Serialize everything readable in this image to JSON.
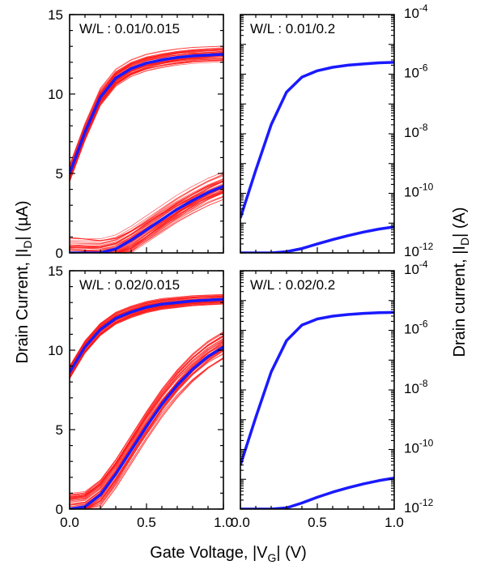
{
  "figure": {
    "left_axis_title_prefix": "Drain Current, |I",
    "left_axis_title_sub": "D",
    "left_axis_title_suffix": "| (µA)",
    "right_axis_title_prefix": "Drain current, |I",
    "right_axis_title_sub": "D",
    "right_axis_title_suffix": "| (A)",
    "x_axis_title_prefix": "Gate Voltage, |V",
    "x_axis_title_sub": "G",
    "x_axis_title_suffix": "| (V)"
  },
  "colors": {
    "variation": "#ff1a1a",
    "mean": "#1a1aff"
  },
  "chart_data": [
    {
      "type": "line",
      "panel": "top-left",
      "label": "W/L : 0.01/0.015",
      "xlim": [
        0,
        1.0
      ],
      "ylim": [
        0,
        15
      ],
      "yscale": "linear",
      "x_ticks": [],
      "y_ticks": [
        "0",
        "5",
        "10",
        "15"
      ],
      "x": [
        0.0,
        0.1,
        0.2,
        0.3,
        0.4,
        0.5,
        0.6,
        0.7,
        0.8,
        0.9,
        1.0
      ],
      "series": [
        {
          "role": "mean",
          "values": [
            5.0,
            7.6,
            9.8,
            11.0,
            11.6,
            11.95,
            12.15,
            12.3,
            12.4,
            12.45,
            12.5
          ]
        },
        {
          "role": "mean",
          "values": [
            0,
            0,
            0,
            0.25,
            0.8,
            1.45,
            2.1,
            2.75,
            3.3,
            3.8,
            4.2
          ]
        }
      ],
      "variation_spread": [
        0.5,
        1.0
      ]
    },
    {
      "type": "line",
      "panel": "top-right",
      "label": "W/L : 0.01/0.2",
      "xlim": [
        0,
        1.0
      ],
      "ylim": [
        1e-12,
        0.0001
      ],
      "yscale": "log",
      "x_ticks": [],
      "y_ticks": [
        "10-12",
        "10-10",
        "10-8",
        "10-6",
        "10-4"
      ],
      "x": [
        0.0,
        0.1,
        0.2,
        0.3,
        0.4,
        0.5,
        0.6,
        0.7,
        0.8,
        0.9,
        1.0
      ],
      "series": [
        {
          "role": "mean",
          "values": [
            1.5e-11,
            6e-10,
            2e-08,
            2.5e-07,
            8e-07,
            1.3e-06,
            1.7e-06,
            2e-06,
            2.2e-06,
            2.4e-06,
            2.5e-06
          ]
        },
        {
          "role": "mean",
          "values": [
            1e-12,
            1e-12,
            1e-12,
            1.1e-12,
            1.4e-12,
            2e-12,
            2.8e-12,
            3.8e-12,
            5e-12,
            6.3e-12,
            7.5e-12
          ]
        }
      ],
      "variation_spread": [
        0.05,
        0.05
      ]
    },
    {
      "type": "line",
      "panel": "bottom-left",
      "label": "W/L : 0.02/0.015",
      "xlim": [
        0,
        1.0
      ],
      "ylim": [
        0,
        15
      ],
      "yscale": "linear",
      "x_ticks": [
        "0.0",
        "0.5",
        "1.0"
      ],
      "y_ticks": [
        "0",
        "5",
        "10",
        "15"
      ],
      "x": [
        0.0,
        0.1,
        0.2,
        0.3,
        0.4,
        0.5,
        0.6,
        0.7,
        0.8,
        0.9,
        1.0
      ],
      "series": [
        {
          "role": "mean",
          "values": [
            8.6,
            10.2,
            11.3,
            12.0,
            12.4,
            12.7,
            12.9,
            13.0,
            13.1,
            13.15,
            13.2
          ]
        },
        {
          "role": "mean",
          "values": [
            0,
            0.15,
            0.9,
            2.2,
            3.7,
            5.2,
            6.6,
            7.8,
            8.8,
            9.6,
            10.2
          ]
        }
      ],
      "variation_spread": [
        0.35,
        1.0
      ]
    },
    {
      "type": "line",
      "panel": "bottom-right",
      "label": "W/L : 0.02/0.2",
      "xlim": [
        0,
        1.0
      ],
      "ylim": [
        1e-12,
        0.0001
      ],
      "yscale": "log",
      "x_ticks": [
        "0.0",
        "0.5",
        "1.0"
      ],
      "y_ticks": [
        "10-12",
        "10-10",
        "10-8",
        "10-6",
        "10-4"
      ],
      "x": [
        0.0,
        0.1,
        0.2,
        0.3,
        0.4,
        0.5,
        0.6,
        0.7,
        0.8,
        0.9,
        1.0
      ],
      "series": [
        {
          "role": "mean",
          "values": [
            3e-11,
            1.2e-09,
            4e-08,
            4.5e-07,
            1.5e-06,
            2.4e-06,
            3e-06,
            3.4e-06,
            3.7e-06,
            3.9e-06,
            4e-06
          ]
        },
        {
          "role": "mean",
          "values": [
            1e-12,
            1e-12,
            1e-12,
            1.1e-12,
            1.6e-12,
            2.5e-12,
            3.7e-12,
            5.2e-12,
            7e-12,
            9e-12,
            1.1e-11
          ]
        }
      ],
      "variation_spread": [
        0.05,
        0.05
      ]
    }
  ]
}
